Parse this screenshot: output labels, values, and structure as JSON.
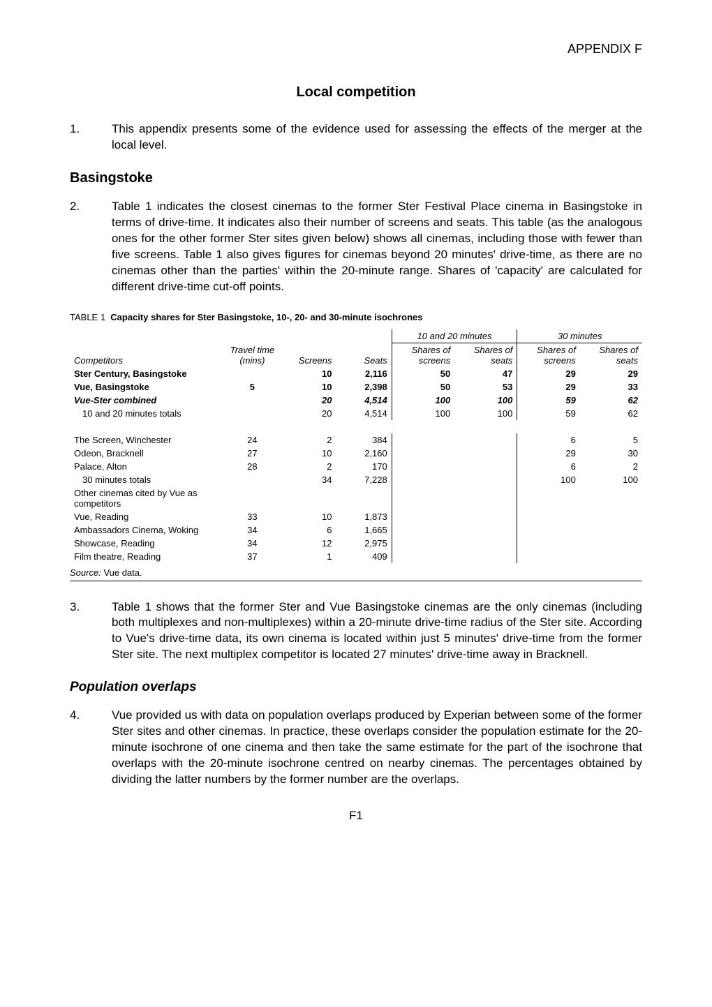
{
  "header": {
    "appendix": "APPENDIX F"
  },
  "title": "Local competition",
  "paras": {
    "p1": {
      "num": "1.",
      "text": "This appendix presents some of the evidence used for assessing the effects of the merger at the local level."
    },
    "p2": {
      "num": "2.",
      "text": "Table 1 indicates the closest cinemas to the former Ster Festival Place cinema in Basingstoke in terms of drive-time. It indicates also their number of screens and seats. This table (as the analogous ones for the other former Ster sites given below) shows all cinemas, including those with fewer than five screens. Table 1 also gives figures for cinemas beyond 20 minutes' drive-time, as there are no cinemas other than the parties' within the 20-minute range. Shares of 'capacity' are calculated for different drive-time cut-off points."
    },
    "p3": {
      "num": "3.",
      "text": "Table 1 shows that the former Ster and Vue Basingstoke cinemas are the only cinemas (including both multiplexes and non-multiplexes) within a 20-minute drive-time radius of the Ster site. According to Vue's drive-time data, its own cinema is located within just 5 minutes' drive-time from the former Ster site. The next multiplex competitor is located 27 minutes' drive-time away in Bracknell."
    },
    "p4": {
      "num": "4.",
      "text": "Vue provided us with data on population overlaps produced by Experian between some of the former Ster sites and other cinemas. In practice, these overlaps consider the population estimate for the 20-minute isochrone of one cinema and then take the same estimate for the part of the isochrone that overlaps with the 20-minute isochrone centred on nearby cinemas. The percentages obtained by dividing the latter numbers by the former number are the overlaps."
    }
  },
  "sections": {
    "basingstoke": "Basingstoke",
    "pop_overlaps": "Population overlaps"
  },
  "table1": {
    "caption_num": "TABLE 1",
    "caption_title": "Capacity shares for Ster Basingstoke, 10-, 20- and 30-minute isochrones",
    "group_headers": {
      "g1": "10 and 20 minutes",
      "g2": "30  minutes"
    },
    "col_headers": {
      "competitors": "Competitors",
      "travel_time": "Travel time (mins)",
      "screens": "Screens",
      "seats": "Seats",
      "shares_screens": "Shares of screens",
      "shares_seats": "Shares of seats",
      "shares_screens2": "Shares of screens",
      "shares_seats2": "Shares of seats"
    },
    "rows": [
      {
        "name": "Ster Century, Basingstoke",
        "travel": "",
        "screens": "10",
        "seats": "2,116",
        "ss1": "50",
        "sse1": "47",
        "ss2": "29",
        "sse2": "29",
        "style": "bold"
      },
      {
        "name": "Vue, Basingstoke",
        "travel": "5",
        "screens": "10",
        "seats": "2,398",
        "ss1": "50",
        "sse1": "53",
        "ss2": "29",
        "sse2": "33",
        "style": "bold"
      },
      {
        "name": "Vue-Ster combined",
        "travel": "",
        "screens": "20",
        "seats": "4,514",
        "ss1": "100",
        "sse1": "100",
        "ss2": "59",
        "sse2": "62",
        "style": "bolditalic"
      },
      {
        "name": "10 and 20 minutes totals",
        "travel": "",
        "screens": "20",
        "seats": "4,514",
        "ss1": "100",
        "sse1": "100",
        "ss2": "59",
        "sse2": "62",
        "style": "indent"
      },
      {
        "spacer": true
      },
      {
        "name": "The Screen, Winchester",
        "travel": "24",
        "screens": "2",
        "seats": "384",
        "ss1": "",
        "sse1": "",
        "ss2": "6",
        "sse2": "5"
      },
      {
        "name": "Odeon, Bracknell",
        "travel": "27",
        "screens": "10",
        "seats": "2,160",
        "ss1": "",
        "sse1": "",
        "ss2": "29",
        "sse2": "30"
      },
      {
        "name": "Palace, Alton",
        "travel": "28",
        "screens": "2",
        "seats": "170",
        "ss1": "",
        "sse1": "",
        "ss2": "6",
        "sse2": "2"
      },
      {
        "name": "30 minutes totals",
        "travel": "",
        "screens": "34",
        "seats": "7,228",
        "ss1": "",
        "sse1": "",
        "ss2": "100",
        "sse2": "100",
        "style": "indent"
      },
      {
        "name": "Other cinemas cited by Vue as competitors",
        "travel": "",
        "screens": "",
        "seats": "",
        "ss1": "",
        "sse1": "",
        "ss2": "",
        "sse2": ""
      },
      {
        "name": "Vue, Reading",
        "travel": "33",
        "screens": "10",
        "seats": "1,873",
        "ss1": "",
        "sse1": "",
        "ss2": "",
        "sse2": ""
      },
      {
        "name": "Ambassadors Cinema, Woking",
        "travel": "34",
        "screens": "6",
        "seats": "1,665",
        "ss1": "",
        "sse1": "",
        "ss2": "",
        "sse2": ""
      },
      {
        "name": "Showcase, Reading",
        "travel": "34",
        "screens": "12",
        "seats": "2,975",
        "ss1": "",
        "sse1": "",
        "ss2": "",
        "sse2": ""
      },
      {
        "name": "Film theatre, Reading",
        "travel": "37",
        "screens": "1",
        "seats": "409",
        "ss1": "",
        "sse1": "",
        "ss2": "",
        "sse2": ""
      }
    ],
    "source_label": "Source:",
    "source_text": "Vue data."
  },
  "footer": {
    "page": "F1"
  },
  "colors": {
    "text": "#000000",
    "background": "#ffffff",
    "rule": "#000000"
  },
  "fonts": {
    "body_family": "Arial, Helvetica, sans-serif",
    "body_size_pt": 12,
    "table_size_pt": 9,
    "title_size_pt": 15
  }
}
